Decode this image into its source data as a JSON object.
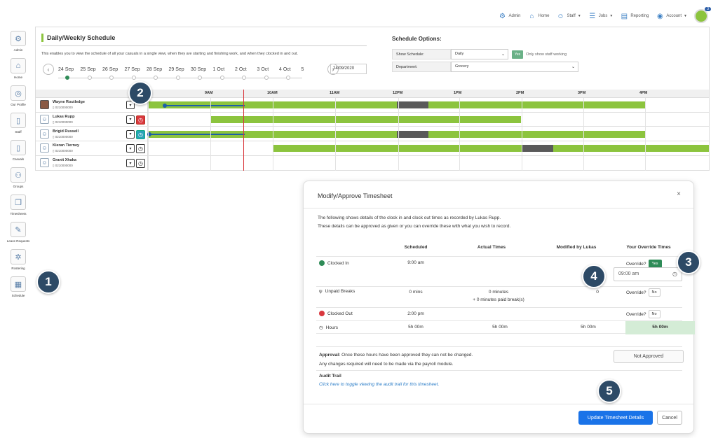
{
  "nav": {
    "items": [
      {
        "label": "Admin",
        "icon": "admin-icon"
      },
      {
        "label": "Home",
        "icon": "home-icon"
      },
      {
        "label": "Staff",
        "icon": "staff-icon",
        "dropdown": true
      },
      {
        "label": "Jobs",
        "icon": "jobs-icon",
        "dropdown": true
      },
      {
        "label": "Reporting",
        "icon": "reporting-icon"
      },
      {
        "label": "Account",
        "icon": "account-icon",
        "dropdown": true
      }
    ],
    "badge": "3"
  },
  "sidebar": {
    "items": [
      {
        "label": "Admin",
        "icon": "gear-icon"
      },
      {
        "label": "Home",
        "icon": "home-icon"
      },
      {
        "label": "Our Profile",
        "icon": "profile-icon"
      },
      {
        "label": "Staff",
        "icon": "staff-icon"
      },
      {
        "label": "Casuals",
        "icon": "casuals-icon"
      },
      {
        "label": "Groups",
        "icon": "groups-icon"
      },
      {
        "label": "Timesheets",
        "icon": "timesheets-icon"
      },
      {
        "label": "Leave Requests",
        "icon": "leave-icon"
      },
      {
        "label": "Rostering",
        "icon": "rostering-icon"
      },
      {
        "label": "Schedule",
        "icon": "schedule-icon"
      }
    ]
  },
  "schedule": {
    "title": "Daily/Weekly Schedule",
    "description": "This enables you to view the schedule of all your casuals in a single view, when they are starting and finishing work, and when they clocked in and out.",
    "dates": [
      "24 Sep",
      "25 Sep",
      "26 Sep",
      "27 Sep",
      "28 Sep",
      "29 Sep",
      "30 Sep",
      "1 Oct",
      "2 Oct",
      "3 Oct",
      "4 Oct",
      "5"
    ],
    "active_date_index": 0,
    "date_value": "24/09/2020",
    "options": {
      "title": "Schedule Options:",
      "show_label": "Show Schedule:",
      "show_value": "Daily",
      "toggle": "Yes",
      "toggle_note": "Only show staff working",
      "dept_label": "Department:",
      "dept_value": "Grocery"
    },
    "hours": [
      "9AM",
      "10AM",
      "11AM",
      "12PM",
      "1PM",
      "2PM",
      "3PM",
      "4PM"
    ],
    "staff": [
      {
        "name": "Wayne Routledge",
        "phone": "0210000000",
        "clock": "none",
        "has_photo": true
      },
      {
        "name": "Lukas Rupp",
        "phone": "0210000000",
        "clock": "red",
        "has_photo": false
      },
      {
        "name": "Brigid Russell",
        "phone": "0210000000",
        "clock": "teal",
        "has_photo": false
      },
      {
        "name": "Kieran Tierney",
        "phone": "0210000000",
        "clock": "normal",
        "has_photo": false
      },
      {
        "name": "Granit Xhaka",
        "phone": "0210000000",
        "clock": "normal",
        "has_photo": false
      }
    ]
  },
  "modal": {
    "title": "Modify/Approve Timesheet",
    "close": "×",
    "desc1": "The following shows details of the clock in and clock out times as recorded by Lukas Rupp.",
    "desc2": "These details can be approved as given or you can override these with what you wish to record.",
    "headers": [
      "Scheduled",
      "Actual Times",
      "Modified by Lukas",
      "Your Override Times"
    ],
    "rows": {
      "clocked_in": {
        "label": "Clocked In",
        "scheduled": "9:00 am",
        "override_label": "Override?",
        "override": "Yes",
        "override_time": "09:00 am"
      },
      "breaks": {
        "label": "Unpaid Breaks",
        "scheduled": "0 mins",
        "actual": "0 minutes",
        "actual_sub": "+ 0 minutes paid break(s)",
        "modified": "0",
        "override_label": "Override?",
        "override": "No"
      },
      "clocked_out": {
        "label": "Clocked Out",
        "scheduled": "2:00 pm",
        "override_label": "Override?",
        "override": "No"
      },
      "hours": {
        "label": "Hours",
        "scheduled": "5h 00m",
        "actual": "5h 00m",
        "modified": "5h 00m",
        "override": "5h 00m"
      }
    },
    "approval_bold": "Approval:",
    "approval_text": " Once these hours have been approved they can not be changed.",
    "approval_text2": "Any changes required will need to be made via the payroll module.",
    "approval_status": "Not Approved",
    "audit_title": "Audit Trail",
    "audit_link": "Click here to toggle viewing the audit trail for this timesheet.",
    "update_button": "Update Timesheet Details",
    "cancel_button": "Cancel"
  },
  "callouts": [
    "1",
    "2",
    "3",
    "4",
    "5"
  ],
  "colors": {
    "green": "#8cc43e",
    "grey": "#5a5a5a",
    "navy": "#2d4a66",
    "blue": "#1a73e8",
    "red": "#d9383e",
    "teal": "#2aa3b8"
  }
}
